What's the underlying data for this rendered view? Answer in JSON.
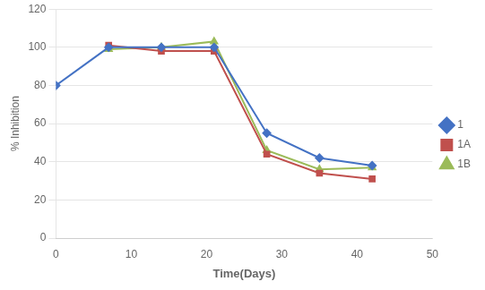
{
  "chart_data": {
    "type": "line",
    "xlabel": "Time(Days)",
    "ylabel": "% Inhibition",
    "series": [
      {
        "name": "1",
        "color": "#4472C4",
        "marker": "diamond",
        "x": [
          0,
          7,
          14,
          21,
          28,
          35,
          42
        ],
        "values": [
          80,
          100,
          100,
          100,
          55,
          42,
          38
        ]
      },
      {
        "name": "1A",
        "color": "#C0504D",
        "marker": "square",
        "x": [
          7,
          14,
          21,
          28,
          35,
          42
        ],
        "values": [
          101,
          98,
          98,
          44,
          34,
          31
        ]
      },
      {
        "name": "1B",
        "color": "#9BBB59",
        "marker": "triangle",
        "x": [
          7,
          14,
          21,
          28,
          35,
          42
        ],
        "values": [
          99,
          100,
          103,
          46,
          36,
          37
        ]
      }
    ],
    "xlim": [
      0,
      50
    ],
    "ylim": [
      0,
      120
    ],
    "xticks": [
      0,
      10,
      20,
      30,
      40,
      50
    ],
    "yticks": [
      0,
      20,
      40,
      60,
      80,
      100,
      120
    ],
    "grid": true,
    "legend": "right"
  }
}
